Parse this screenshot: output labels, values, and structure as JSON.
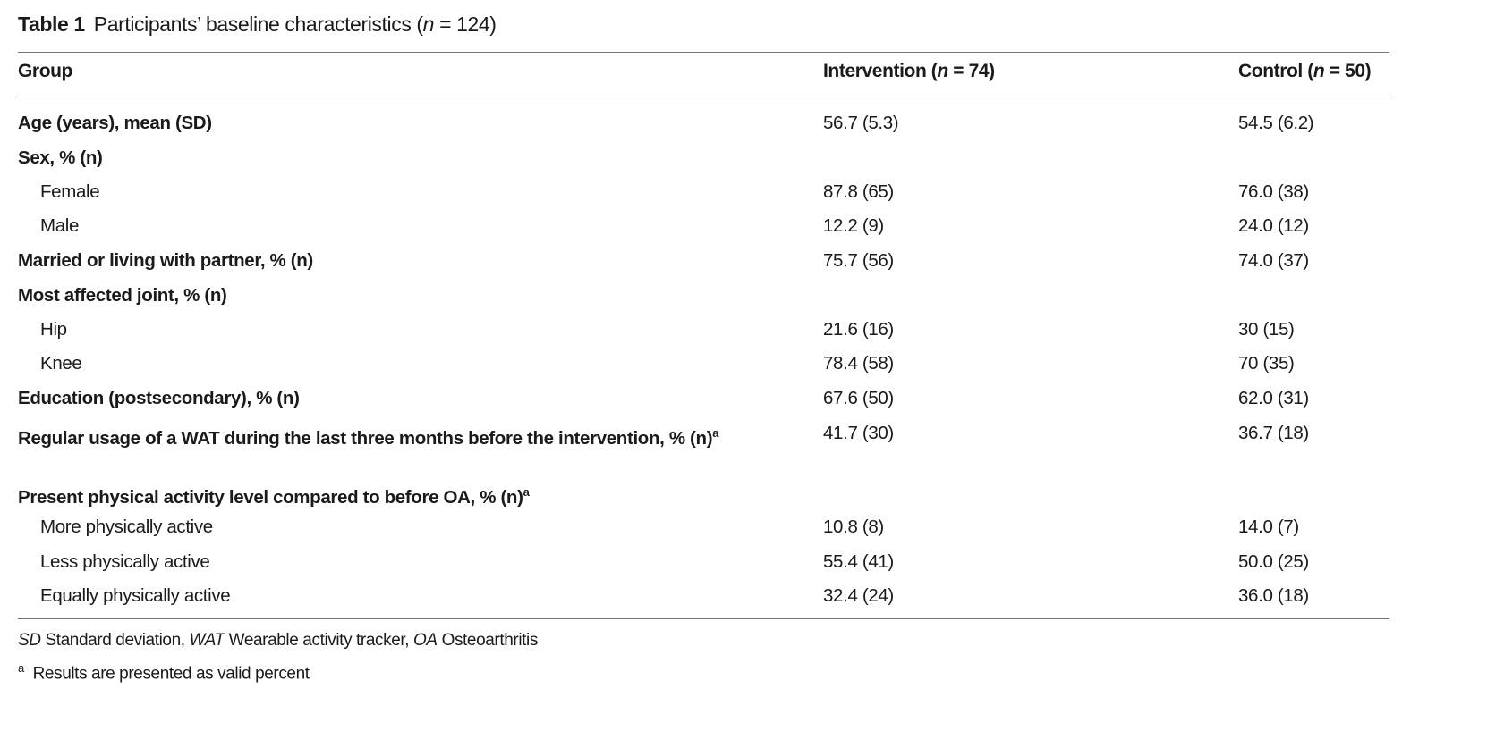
{
  "title": {
    "label": "Table 1",
    "text": "Participants’ baseline characteristics (",
    "n_italic": "n",
    "n_value": " = 124)"
  },
  "columns": {
    "group": "Group",
    "intervention": {
      "label": "Intervention (",
      "n": "n",
      "value": " = 74)"
    },
    "control": {
      "label": "Control (",
      "n": "n",
      "value": " = 50)"
    }
  },
  "rows": [
    {
      "label": "Age (years), mean (SD)",
      "level": "header",
      "intervention": "56.7 (5.3)",
      "control": "54.5 (6.2)"
    },
    {
      "label": "Sex, % (n)",
      "level": "header",
      "intervention": "",
      "control": ""
    },
    {
      "label": "Female",
      "level": "sub",
      "intervention": "87.8 (65)",
      "control": "76.0 (38)"
    },
    {
      "label": "Male",
      "level": "sub",
      "intervention": "12.2 (9)",
      "control": "24.0 (12)"
    },
    {
      "label": "Married or living with partner, % (n)",
      "level": "header",
      "intervention": "75.7 (56)",
      "control": "74.0 (37)"
    },
    {
      "label": "Most affected joint, % (n)",
      "level": "header",
      "intervention": "",
      "control": ""
    },
    {
      "label": "Hip",
      "level": "sub",
      "intervention": "21.6 (16)",
      "control": "30 (15)"
    },
    {
      "label": "Knee",
      "level": "sub",
      "intervention": "78.4 (58)",
      "control": "70 (35)"
    },
    {
      "label": "Education (postsecondary), % (n)",
      "level": "header",
      "intervention": "67.6 (50)",
      "control": "62.0 (31)"
    },
    {
      "label": "Regular usage of a WAT during the last three months before the intervention, % (n)",
      "sup": "a",
      "level": "header",
      "intervention": "41.7 (30)",
      "control": "36.7 (18)"
    },
    {
      "label": "Present physical activity level compared to before OA, % (n)",
      "sup": "a",
      "level": "header",
      "intervention": "",
      "control": ""
    },
    {
      "label": "More physically active",
      "level": "sub",
      "intervention": "10.8 (8)",
      "control": "14.0 (7)"
    },
    {
      "label": "Less physically active",
      "level": "sub",
      "intervention": "55.4 (41)",
      "control": "50.0 (25)"
    },
    {
      "label": "Equally physically active",
      "level": "sub",
      "intervention": "32.4 (24)",
      "control": "36.0 (18)"
    }
  ],
  "footnotes": {
    "abbrev": [
      {
        "abbr": "SD",
        "text": " Standard deviation, "
      },
      {
        "abbr": "WAT",
        "text": " Wearable activity tracker, "
      },
      {
        "abbr": "OA",
        "text": " Osteoarthritis"
      }
    ],
    "a_mark": "a",
    "a_text": "Results are presented as valid percent"
  }
}
